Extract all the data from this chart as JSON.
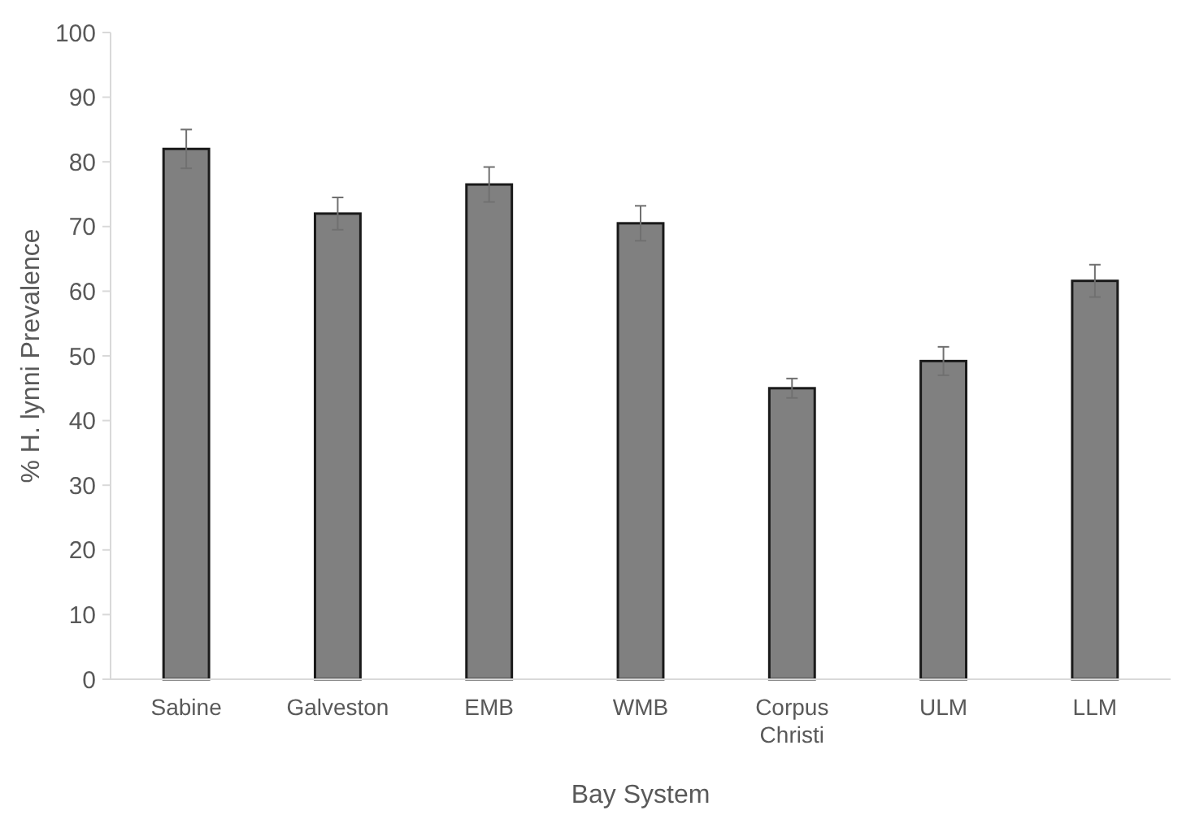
{
  "chart_data": {
    "type": "bar",
    "xlabel": "Bay System",
    "ylabel": "% H. lynni Prevalence",
    "categories": [
      "Sabine",
      "Galveston",
      "EMB",
      "WMB",
      "Corpus Christi",
      "ULM",
      "LLM"
    ],
    "values": [
      82,
      72,
      76.5,
      70.5,
      45,
      49.2,
      61.6
    ],
    "errors": [
      3,
      2.5,
      2.7,
      2.7,
      1.5,
      2.2,
      2.5
    ],
    "color": "#808080",
    "ylim": [
      0,
      100
    ],
    "yticks": [
      0,
      10,
      20,
      30,
      40,
      50,
      60,
      70,
      80,
      90,
      100
    ],
    "grid": false
  }
}
